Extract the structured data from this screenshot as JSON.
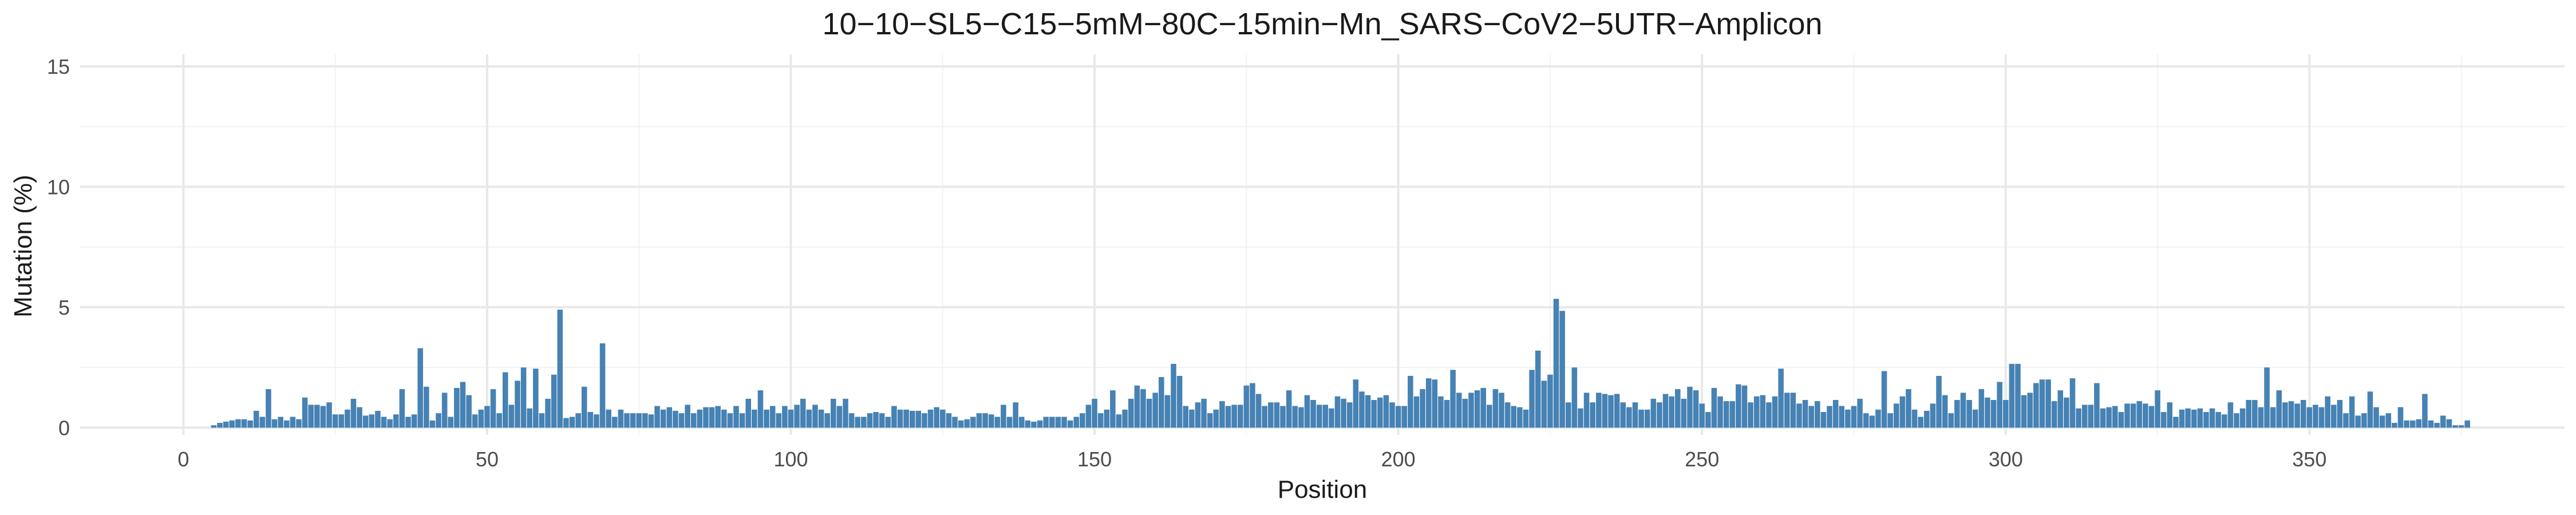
{
  "chart_data": {
    "type": "bar",
    "title": "10−10−SL5−C15−5mM−80C−15min−Mn_SARS−CoV2−5UTR−Amplicon",
    "xlabel": "Position",
    "ylabel": "Mutation (%)",
    "xlim": [
      -17,
      392
    ],
    "ylim": [
      -0.3,
      15.5
    ],
    "x_ticks": [
      0,
      50,
      100,
      150,
      200,
      250,
      300,
      350
    ],
    "y_ticks": [
      0,
      5,
      10,
      15
    ],
    "x_tick_labels": [
      "0",
      "50",
      "100",
      "150",
      "200",
      "250",
      "300",
      "350"
    ],
    "y_tick_labels": [
      "0",
      "5",
      "10",
      "15"
    ],
    "grid": true,
    "bar_color": "#4682b4",
    "x_start": 5,
    "values": [
      0.1,
      0.2,
      0.25,
      0.3,
      0.35,
      0.35,
      0.3,
      0.7,
      0.45,
      1.6,
      0.35,
      0.45,
      0.3,
      0.45,
      0.35,
      1.25,
      0.95,
      0.95,
      0.9,
      1.05,
      0.55,
      0.55,
      0.75,
      1.2,
      0.85,
      0.5,
      0.55,
      0.7,
      0.45,
      0.35,
      0.55,
      1.6,
      0.45,
      0.55,
      3.3,
      1.7,
      0.3,
      0.6,
      1.45,
      0.45,
      1.65,
      1.9,
      1.35,
      0.55,
      0.75,
      0.9,
      1.6,
      0.6,
      2.3,
      0.95,
      1.95,
      2.5,
      0.8,
      2.45,
      0.6,
      1.2,
      2.2,
      4.9,
      0.4,
      0.45,
      0.6,
      1.7,
      0.65,
      0.55,
      3.5,
      0.75,
      0.45,
      0.75,
      0.6,
      0.6,
      0.6,
      0.6,
      0.55,
      0.9,
      0.75,
      0.85,
      0.7,
      0.6,
      0.95,
      0.6,
      0.75,
      0.85,
      0.85,
      0.9,
      0.75,
      0.6,
      0.9,
      0.6,
      1.2,
      0.75,
      1.55,
      0.75,
      0.9,
      0.6,
      0.9,
      0.75,
      0.95,
      1.2,
      0.75,
      0.95,
      0.75,
      0.6,
      1.2,
      0.9,
      1.2,
      0.6,
      0.45,
      0.45,
      0.6,
      0.65,
      0.6,
      0.45,
      0.9,
      0.75,
      0.75,
      0.7,
      0.7,
      0.6,
      0.75,
      0.85,
      0.75,
      0.6,
      0.45,
      0.3,
      0.35,
      0.45,
      0.6,
      0.6,
      0.55,
      0.45,
      0.95,
      0.45,
      1.05,
      0.45,
      0.3,
      0.25,
      0.3,
      0.45,
      0.45,
      0.45,
      0.45,
      0.3,
      0.45,
      0.6,
      0.95,
      1.2,
      0.6,
      0.75,
      1.55,
      0.55,
      0.75,
      1.2,
      1.75,
      1.6,
      1.2,
      1.45,
      2.1,
      1.35,
      2.65,
      2.15,
      0.9,
      0.75,
      1.05,
      1.2,
      0.6,
      0.75,
      1.1,
      0.9,
      0.95,
      0.95,
      1.75,
      1.85,
      1.4,
      0.9,
      1.05,
      1.05,
      0.9,
      1.55,
      0.9,
      0.85,
      1.35,
      1.15,
      0.95,
      0.95,
      0.8,
      1.3,
      1.2,
      1.05,
      2.0,
      1.5,
      1.35,
      1.15,
      1.25,
      1.35,
      1.05,
      0.9,
      0.9,
      2.15,
      1.3,
      1.6,
      2.05,
      2.0,
      1.3,
      1.15,
      2.4,
      1.45,
      1.2,
      1.45,
      1.55,
      1.65,
      0.95,
      1.6,
      1.45,
      1.05,
      0.9,
      0.85,
      0.75,
      2.4,
      3.2,
      1.95,
      2.2,
      5.35,
      4.85,
      1.05,
      2.5,
      0.8,
      1.45,
      1.05,
      1.45,
      1.4,
      1.35,
      1.4,
      1.05,
      0.85,
      1.05,
      0.75,
      0.75,
      1.2,
      1.05,
      1.4,
      1.3,
      1.6,
      1.2,
      1.7,
      1.55,
      1.0,
      0.65,
      1.65,
      1.3,
      1.1,
      1.1,
      1.8,
      1.75,
      1.05,
      1.3,
      1.35,
      1.05,
      1.3,
      2.45,
      1.45,
      1.45,
      1.0,
      1.15,
      0.9,
      1.1,
      0.65,
      0.9,
      1.15,
      0.9,
      0.75,
      0.9,
      1.2,
      0.6,
      0.5,
      0.75,
      2.35,
      0.6,
      1.0,
      1.3,
      1.6,
      0.75,
      0.45,
      0.7,
      1.0,
      2.15,
      1.35,
      0.6,
      1.15,
      1.45,
      1.15,
      0.75,
      1.6,
      1.25,
      1.15,
      1.9,
      1.15,
      2.65,
      2.65,
      1.35,
      1.45,
      1.85,
      2.0,
      2.0,
      1.1,
      1.55,
      1.25,
      2.05,
      0.8,
      0.95,
      0.95,
      1.85,
      0.8,
      0.85,
      0.9,
      0.65,
      1.0,
      1.0,
      1.1,
      1.0,
      0.9,
      1.55,
      0.65,
      1.05,
      0.45,
      0.75,
      0.8,
      0.75,
      0.8,
      0.65,
      0.8,
      0.65,
      0.55,
      1.05,
      0.6,
      0.8,
      1.15,
      1.15,
      0.85,
      2.5,
      0.85,
      1.55,
      1.05,
      1.1,
      1.0,
      1.15,
      0.85,
      0.95,
      0.85,
      1.3,
      0.95,
      1.15,
      0.6,
      1.3,
      0.5,
      0.6,
      1.5,
      0.85,
      0.5,
      0.6,
      0.2,
      0.85,
      0.3,
      0.3,
      0.35,
      1.4,
      0.3,
      0.2,
      0.5,
      0.35,
      0.1,
      0.1,
      0.3
    ]
  }
}
